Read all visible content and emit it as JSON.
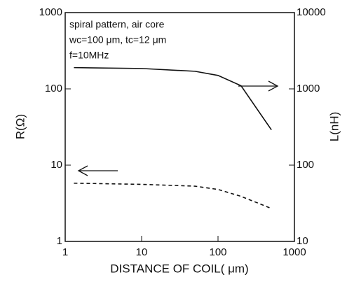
{
  "chart_data": {
    "type": "line",
    "annotations": [
      "spiral pattern, air core",
      "wc=100 μm, tc=12 μm",
      "f=10MHz"
    ],
    "x_label": "DISTANCE OF COIL( μm)",
    "y_label": "R(Ω)",
    "y2_label": "L(nH)",
    "xscale": "log",
    "yscale": "log",
    "y2scale": "log",
    "x": [
      1.3,
      10,
      50,
      100,
      200,
      500
    ],
    "series": [
      {
        "color": "#111111",
        "dash": false,
        "axis": "y2",
        "values": [
          1900,
          1850,
          1700,
          1500,
          1100,
          290
        ]
      },
      {
        "color": "#111111",
        "dash": true,
        "values": [
          5.8,
          5.6,
          5.3,
          4.8,
          3.9,
          2.7
        ]
      }
    ],
    "xlim": [
      1,
      1000
    ],
    "xticks": [
      1,
      10,
      100,
      1000
    ],
    "ylim": [
      1,
      1000
    ],
    "yticks": [
      1,
      10,
      100,
      1000
    ],
    "y2lim": [
      10,
      10000
    ],
    "y2ticks": [
      10,
      100,
      1000,
      10000
    ]
  }
}
